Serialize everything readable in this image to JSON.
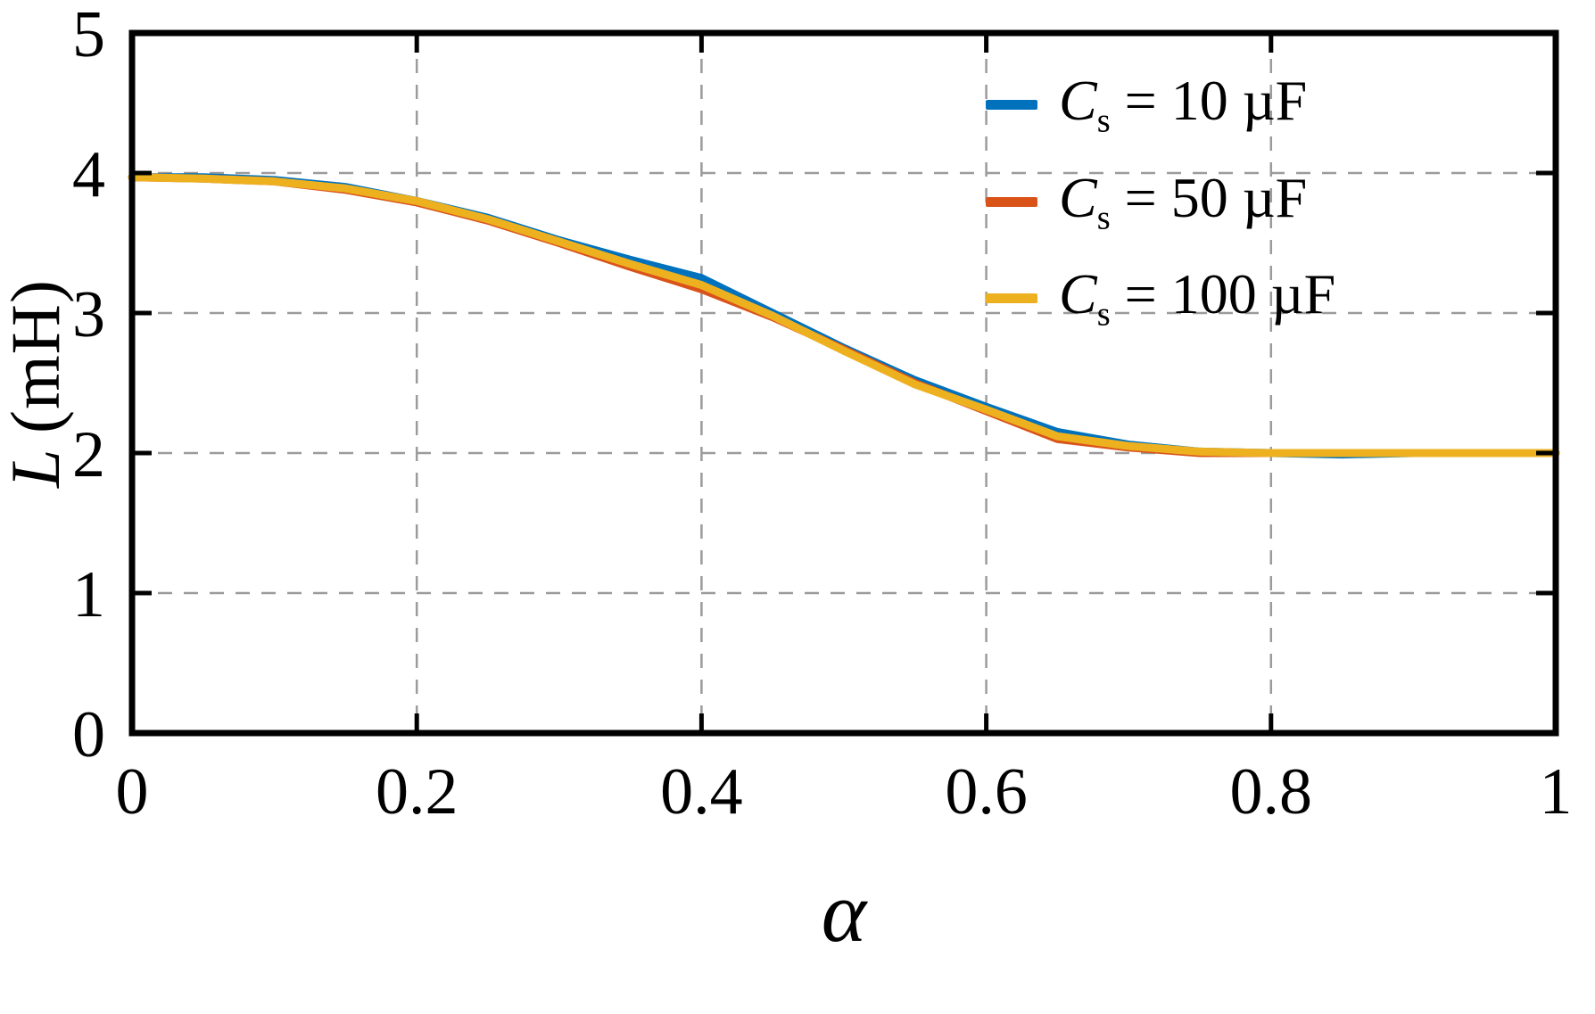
{
  "figure": {
    "background": "#ffffff"
  },
  "chart_data": {
    "type": "line",
    "title": "",
    "xlabel": "α",
    "ylabel": "L (mH)",
    "ylabel_symbol": "L",
    "ylabel_units": "(mH)",
    "xlim": [
      0,
      1
    ],
    "ylim": [
      0,
      5
    ],
    "xticks": [
      0,
      0.2,
      0.4,
      0.6,
      0.8,
      1
    ],
    "xtick_labels": [
      "0",
      "0.2",
      "0.4",
      "0.6",
      "0.8",
      "1"
    ],
    "yticks": [
      0,
      1,
      2,
      3,
      4,
      5
    ],
    "ytick_labels": [
      "0",
      "1",
      "2",
      "3",
      "4",
      "5"
    ],
    "grid": true,
    "grid_style": "dashed",
    "legend_position": "top-right",
    "x": [
      0,
      0.05,
      0.1,
      0.15,
      0.2,
      0.25,
      0.3,
      0.35,
      0.4,
      0.45,
      0.5,
      0.55,
      0.6,
      0.65,
      0.7,
      0.75,
      0.8,
      0.85,
      0.9,
      0.95,
      1.0
    ],
    "series": [
      {
        "id": "cs-10uF",
        "name": "Cs = 10 µF",
        "symbol": "C",
        "subscript": "s",
        "value_text": " = 10 µF",
        "color": "#0072BD",
        "values": [
          3.97,
          3.97,
          3.95,
          3.9,
          3.8,
          3.68,
          3.52,
          3.38,
          3.25,
          3.0,
          2.75,
          2.52,
          2.33,
          2.15,
          2.06,
          2.01,
          2.0,
          1.99,
          2.0,
          2.0,
          2.0
        ]
      },
      {
        "id": "cs-50uF",
        "name": "Cs = 50 µF",
        "symbol": "C",
        "subscript": "s",
        "value_text": " = 50 µF",
        "color": "#D95319",
        "values": [
          3.97,
          3.96,
          3.94,
          3.88,
          3.79,
          3.66,
          3.5,
          3.33,
          3.17,
          2.97,
          2.74,
          2.5,
          2.3,
          2.1,
          2.04,
          2.0,
          2.0,
          2.0,
          2.0,
          2.0,
          2.0
        ]
      },
      {
        "id": "cs-100uF",
        "name": "Cs = 100 µF",
        "symbol": "C",
        "subscript": "s",
        "value_text": " = 100 µF",
        "color": "#EDB120",
        "values": [
          3.97,
          3.96,
          3.94,
          3.89,
          3.8,
          3.67,
          3.51,
          3.35,
          3.2,
          2.98,
          2.73,
          2.49,
          2.31,
          2.12,
          2.05,
          2.01,
          2.0,
          2.0,
          2.0,
          2.0,
          2.0
        ]
      }
    ]
  }
}
